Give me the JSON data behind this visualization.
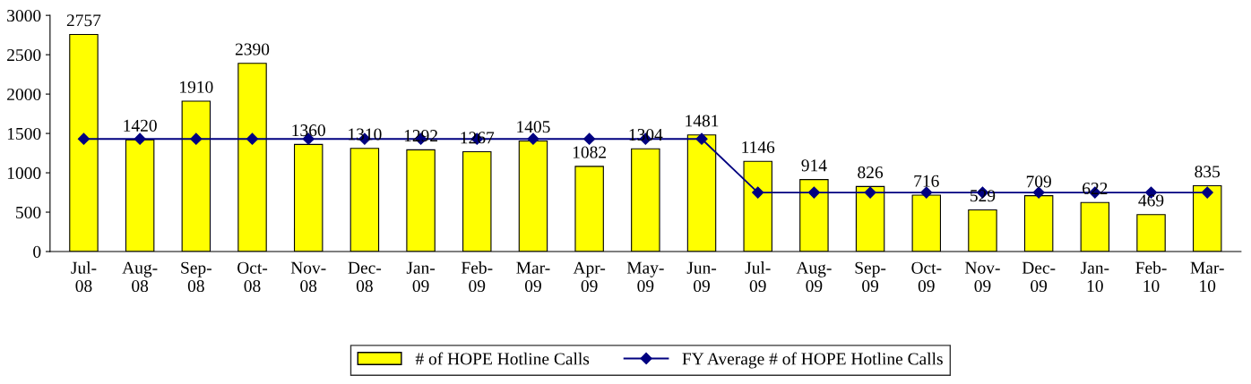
{
  "chart_data": {
    "type": "bar",
    "categories": [
      "Jul-\n08",
      "Aug-\n08",
      "Sep-\n08",
      "Oct-\n08",
      "Nov-\n08",
      "Dec-\n08",
      "Jan-\n09",
      "Feb-\n09",
      "Mar-\n09",
      "Apr-\n09",
      "May-\n09",
      "Jun-\n09",
      "Jul-\n09",
      "Aug-\n09",
      "Sep-\n09",
      "Oct-\n09",
      "Nov-\n09",
      "Dec-\n09",
      "Jan-\n10",
      "Feb-\n10",
      "Mar-\n10"
    ],
    "series": [
      {
        "name": "# of HOPE Hotline Calls",
        "color": "#ffff00",
        "values": [
          2757,
          1420,
          1910,
          2390,
          1360,
          1310,
          1292,
          1267,
          1405,
          1082,
          1304,
          1481,
          1146,
          914,
          826,
          716,
          529,
          709,
          622,
          469,
          835
        ],
        "value_labels": [
          "2757",
          "1420",
          "1910",
          "2390",
          "1360",
          "1310",
          "1292",
          "1267",
          "1405",
          "1082",
          "1304",
          "1481",
          "1146",
          "914",
          "826",
          "716",
          "529",
          "709",
          "622",
          "469",
          "835"
        ]
      },
      {
        "name": "FY Average # of HOPE Hotline Calls",
        "type": "line",
        "color": "#000080",
        "marker": "diamond",
        "values": [
          1430,
          1430,
          1430,
          1430,
          1430,
          1430,
          1430,
          1430,
          1430,
          1430,
          1430,
          1430,
          750,
          750,
          750,
          750,
          750,
          750,
          750,
          750,
          750
        ]
      }
    ],
    "ylim": [
      0,
      3000
    ],
    "yticks": [
      0,
      500,
      1000,
      1500,
      2000,
      2500,
      3000
    ],
    "grid": false,
    "legend": "bottom"
  }
}
